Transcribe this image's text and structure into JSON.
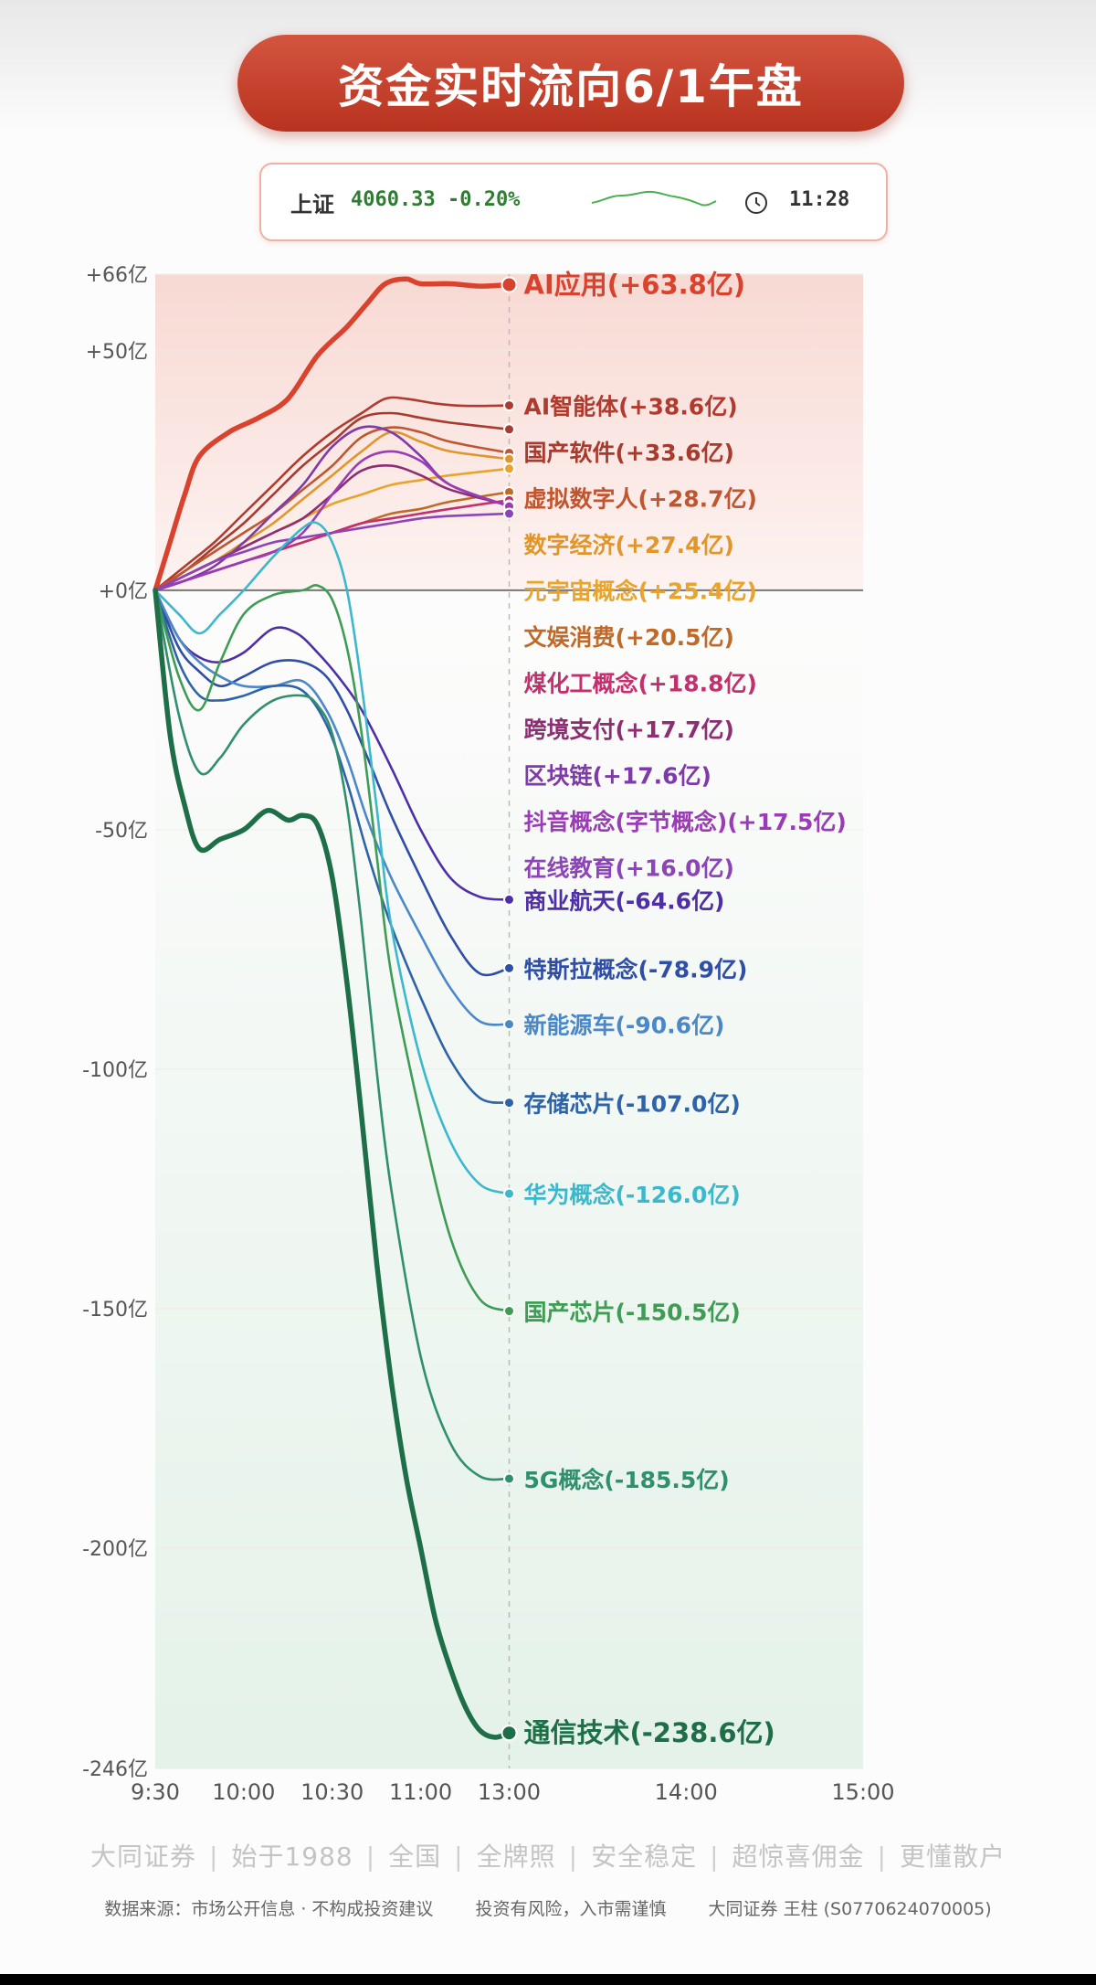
{
  "title": "资金实时流向6/1午盘",
  "index": {
    "name": "上证",
    "value": "4060.33 -0.20%",
    "time": "11:28"
  },
  "colors": {
    "title_bg": "#c8432f",
    "positive_fill": "#fbe6e2",
    "negative_fill": "#e7f3ec",
    "zero_line": "#777777"
  },
  "chart_data": {
    "type": "line",
    "y_ticks": [
      "+66亿",
      "+50亿",
      "+0亿",
      "-50亿",
      "-100亿",
      "-150亿",
      "-200亿",
      "-246亿"
    ],
    "y_tick_values": [
      66,
      50,
      0,
      -50,
      -100,
      -150,
      -200,
      -246
    ],
    "ylim": [
      -246,
      66
    ],
    "x_ticks": [
      "9:30",
      "10:00",
      "10:30",
      "11:00",
      "13:00",
      "14:00",
      "15:00"
    ],
    "x_tick_values": [
      0,
      30,
      60,
      90,
      120,
      180,
      240
    ],
    "xlim": [
      0,
      240
    ],
    "x_note": "trading minutes from 9:30; 11:30 and 13:00 share position 120",
    "series": [
      {
        "name": "AI应用",
        "label": "AI应用(+63.8亿)",
        "final": 63.8,
        "color": "#d9432e",
        "x": [
          0,
          5,
          10,
          15,
          25,
          35,
          45,
          55,
          65,
          72,
          78,
          85,
          90,
          100,
          110,
          120
        ],
        "y": [
          0,
          10,
          20,
          28,
          33,
          36,
          40,
          49,
          55,
          60,
          64,
          65,
          64,
          64,
          63.5,
          63.8
        ]
      },
      {
        "name": "AI智能体",
        "label": "AI智能体(+38.6亿)",
        "final": 38.6,
        "color": "#b03a2e",
        "x": [
          0,
          10,
          20,
          30,
          40,
          50,
          60,
          70,
          78,
          85,
          95,
          105,
          120
        ],
        "y": [
          0,
          5,
          10,
          16,
          22,
          28,
          33,
          37,
          40,
          40,
          39,
          38.5,
          38.6
        ]
      },
      {
        "name": "国产软件",
        "label": "国产软件(+33.6亿)",
        "final": 33.6,
        "color": "#a83a2e",
        "x": [
          0,
          10,
          20,
          30,
          40,
          50,
          60,
          70,
          80,
          90,
          100,
          120
        ],
        "y": [
          0,
          4,
          9,
          14,
          20,
          26,
          31,
          36,
          37,
          36,
          35,
          33.6
        ]
      },
      {
        "name": "虚拟数字人",
        "label": "虚拟数字人(+28.7亿)",
        "final": 28.7,
        "color": "#c0562f",
        "x": [
          0,
          10,
          20,
          30,
          40,
          50,
          60,
          70,
          80,
          90,
          100,
          120
        ],
        "y": [
          0,
          4,
          8,
          12,
          16,
          21,
          26,
          32,
          34,
          33,
          31,
          28.7
        ]
      },
      {
        "name": "数字经济",
        "label": "数字经济(+27.4亿)",
        "final": 27.4,
        "color": "#e0962a",
        "x": [
          0,
          10,
          20,
          30,
          40,
          50,
          60,
          70,
          80,
          90,
          100,
          120
        ],
        "y": [
          0,
          3,
          6,
          10,
          14,
          19,
          24,
          29,
          33,
          31,
          29,
          27.4
        ]
      },
      {
        "name": "元宇宙概念",
        "label": "元宇宙概念(+25.4亿)",
        "final": 25.4,
        "color": "#e8a42c",
        "x": [
          0,
          10,
          20,
          30,
          40,
          50,
          60,
          70,
          80,
          90,
          100,
          120
        ],
        "y": [
          0,
          3,
          6,
          9,
          12,
          15,
          18,
          20,
          22,
          23,
          24,
          25.4
        ]
      },
      {
        "name": "文娱消费",
        "label": "文娱消费(+20.5亿)",
        "final": 20.5,
        "color": "#c06a2a",
        "x": [
          0,
          10,
          20,
          30,
          40,
          50,
          60,
          70,
          80,
          90,
          100,
          120
        ],
        "y": [
          0,
          2,
          4,
          6,
          8,
          10,
          12,
          14,
          16,
          17,
          18.5,
          20.5
        ]
      },
      {
        "name": "煤化工概念",
        "label": "煤化工概念(+18.8亿)",
        "final": 18.8,
        "color": "#c2306e",
        "x": [
          0,
          10,
          20,
          30,
          40,
          50,
          60,
          70,
          80,
          90,
          100,
          120
        ],
        "y": [
          0,
          2,
          4,
          6,
          8,
          10,
          12,
          14,
          15,
          16,
          17,
          18.8
        ]
      },
      {
        "name": "跨境支付",
        "label": "跨境支付(+17.7亿)",
        "final": 17.7,
        "color": "#8e2e72",
        "x": [
          0,
          10,
          20,
          30,
          40,
          50,
          60,
          70,
          80,
          90,
          100,
          120
        ],
        "y": [
          0,
          3,
          6,
          9,
          12,
          15,
          20,
          25,
          26,
          24,
          21,
          17.7
        ]
      },
      {
        "name": "区块链",
        "label": "区块链(+17.6亿)",
        "final": 17.6,
        "color": "#7e3aa8",
        "x": [
          0,
          10,
          20,
          30,
          40,
          50,
          60,
          70,
          80,
          90,
          100,
          120
        ],
        "y": [
          0,
          2,
          5,
          10,
          16,
          22,
          30,
          34,
          33,
          28,
          22,
          17.6
        ]
      },
      {
        "name": "抖音概念(字节概念)",
        "label": "抖音概念(字节概念)(+17.5亿)",
        "final": 17.5,
        "color": "#9a3cb5",
        "x": [
          0,
          10,
          20,
          30,
          40,
          50,
          60,
          70,
          80,
          90,
          100,
          120
        ],
        "y": [
          0,
          2,
          4,
          6,
          8,
          12,
          20,
          27,
          29,
          27,
          22,
          17.5
        ]
      },
      {
        "name": "在线教育",
        "label": "在线教育(+16.0亿)",
        "final": 16.0,
        "color": "#8c44b8",
        "x": [
          0,
          10,
          20,
          30,
          40,
          50,
          60,
          70,
          80,
          90,
          100,
          120
        ],
        "y": [
          0,
          3,
          6,
          8,
          10,
          11,
          12,
          13,
          14,
          15,
          15.5,
          16.0
        ]
      },
      {
        "name": "商业航天",
        "label": "商业航天(-64.6亿)",
        "final": -64.6,
        "color": "#4e2fa8",
        "x": [
          0,
          8,
          15,
          22,
          30,
          40,
          48,
          55,
          62,
          70,
          80,
          90,
          100,
          110,
          120
        ],
        "y": [
          0,
          -10,
          -14,
          -15,
          -13,
          -8,
          -9,
          -13,
          -18,
          -25,
          -37,
          -50,
          -60,
          -64,
          -64.6
        ]
      },
      {
        "name": "特斯拉概念",
        "label": "特斯拉概念(-78.9亿)",
        "final": -78.9,
        "color": "#2f4ea6",
        "x": [
          0,
          8,
          15,
          22,
          30,
          40,
          50,
          58,
          65,
          72,
          80,
          90,
          100,
          110,
          120
        ],
        "y": [
          0,
          -12,
          -17,
          -20,
          -18,
          -15,
          -15,
          -18,
          -25,
          -35,
          -47,
          -60,
          -72,
          -80,
          -78.9
        ]
      },
      {
        "name": "新能源车",
        "label": "新能源车(-90.6亿)",
        "final": -90.6,
        "color": "#4a88c8",
        "x": [
          0,
          8,
          15,
          22,
          30,
          40,
          50,
          58,
          65,
          72,
          80,
          90,
          100,
          110,
          120
        ],
        "y": [
          0,
          -10,
          -15,
          -18,
          -20,
          -20,
          -19,
          -25,
          -35,
          -48,
          -60,
          -72,
          -83,
          -90,
          -90.6
        ]
      },
      {
        "name": "存储芯片",
        "label": "存储芯片(-107.0亿)",
        "final": -107.0,
        "color": "#2f63a8",
        "x": [
          0,
          8,
          15,
          22,
          30,
          40,
          50,
          58,
          65,
          72,
          80,
          90,
          100,
          110,
          120
        ],
        "y": [
          0,
          -15,
          -22,
          -23,
          -22,
          -20,
          -21,
          -28,
          -40,
          -55,
          -70,
          -85,
          -98,
          -106,
          -107
        ]
      },
      {
        "name": "华为概念",
        "label": "华为概念(-126.0亿)",
        "final": -126.0,
        "color": "#3cb8cc",
        "x": [
          0,
          8,
          15,
          22,
          30,
          40,
          50,
          55,
          60,
          65,
          70,
          75,
          80,
          90,
          100,
          110,
          120
        ],
        "y": [
          0,
          -5,
          -9,
          -5,
          0,
          7,
          13,
          14,
          10,
          0,
          -20,
          -45,
          -70,
          -98,
          -115,
          -124,
          -126
        ]
      },
      {
        "name": "国产芯片",
        "label": "国产芯片(-150.5亿)",
        "final": -150.5,
        "color": "#3f9c54",
        "x": [
          0,
          8,
          15,
          22,
          30,
          40,
          50,
          55,
          60,
          65,
          70,
          75,
          80,
          90,
          100,
          110,
          120
        ],
        "y": [
          0,
          -18,
          -25,
          -15,
          -5,
          -1,
          0,
          1,
          -2,
          -12,
          -30,
          -55,
          -80,
          -110,
          -135,
          -148,
          -150.5
        ]
      },
      {
        "name": "5G概念",
        "label": "5G概念(-185.5亿)",
        "final": -185.5,
        "color": "#2f8f6e",
        "x": [
          0,
          8,
          15,
          22,
          30,
          40,
          50,
          55,
          60,
          65,
          70,
          75,
          80,
          90,
          100,
          110,
          120
        ],
        "y": [
          0,
          -26,
          -38,
          -35,
          -28,
          -23,
          -22,
          -24,
          -30,
          -45,
          -70,
          -100,
          -125,
          -160,
          -178,
          -185,
          -185.5
        ]
      },
      {
        "name": "通信技术",
        "label": "通信技术(-238.6亿)",
        "final": -238.6,
        "color": "#1e6e48",
        "x": [
          0,
          5,
          10,
          15,
          22,
          30,
          38,
          45,
          50,
          55,
          60,
          65,
          70,
          75,
          80,
          85,
          90,
          95,
          100,
          105,
          110,
          115,
          120
        ],
        "y": [
          0,
          -30,
          -45,
          -54,
          -52,
          -50,
          -46,
          -48,
          -47,
          -49,
          -60,
          -82,
          -110,
          -140,
          -165,
          -185,
          -200,
          -215,
          -225,
          -233,
          -238,
          -239.5,
          -238.6
        ]
      }
    ],
    "labels_y_order": [
      "AI应用(+63.8亿)",
      "AI智能体(+38.6亿)",
      "国产软件(+33.6亿)",
      "虚拟数字人(+28.7亿)",
      "数字经济(+27.4亿)",
      "元宇宙概念(+25.4亿)",
      "文娱消费(+20.5亿)",
      "煤化工概念(+18.8亿)",
      "跨境支付(+17.7亿)",
      "区块链(+17.6亿)",
      "抖音概念(字节概念)(+17.5亿)",
      "在线教育(+16.0亿)",
      "商业航天(-64.6亿)",
      "特斯拉概念(-78.9亿)",
      "新能源车(-90.6亿)",
      "存储芯片(-107.0亿)",
      "华为概念(-126.0亿)",
      "国产芯片(-150.5亿)",
      "5G概念(-185.5亿)",
      "通信技术(-238.6亿)"
    ]
  },
  "footer": {
    "tagline": [
      "大同证券",
      "始于1988",
      "全国",
      "全牌照",
      "安全稳定",
      "超惊喜佣金",
      "更懂散户"
    ],
    "source": "数据来源：市场公开信息 · 不构成投资建议",
    "risk": "投资有风险，入市需谨慎",
    "advisor": "大同证券 王柱 (S0770624070005)"
  }
}
